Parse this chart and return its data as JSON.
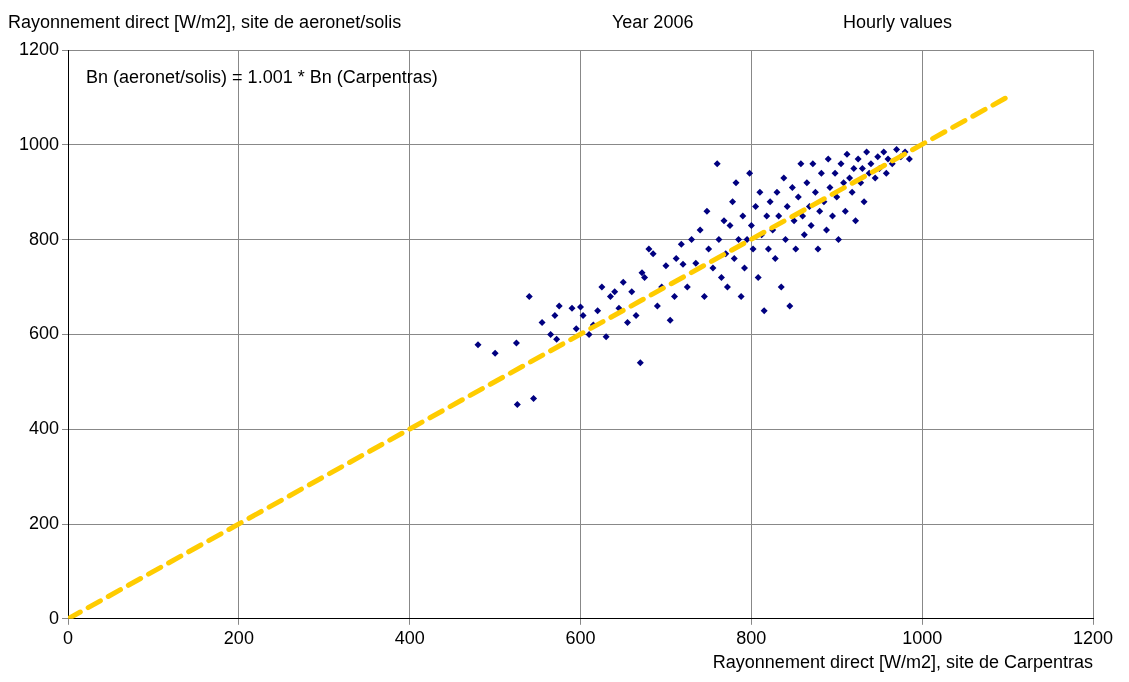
{
  "chart_data": {
    "type": "scatter",
    "title": "Rayonnement direct [W/m2], site de aeronet/solis",
    "subtitle": "Year 2006",
    "xlabel": "Rayonnement direct [W/m2], site de Carpentras",
    "annotations": [
      "Hourly values",
      "Bn (aeronet/solis) = 1.001 * Bn (Carpentras)"
    ],
    "xlim": [
      0,
      1200
    ],
    "xticks": [
      0,
      200,
      400,
      600,
      800,
      1000,
      1200
    ],
    "ylim": [
      0,
      1200
    ],
    "yticks": [
      0,
      200,
      400,
      600,
      800,
      1000,
      1200
    ],
    "grid": true,
    "marker": "diamond",
    "series": [
      {
        "type": "scatter",
        "color": "#000080",
        "x": [
          480,
          500,
          525,
          526,
          545,
          540,
          555,
          565,
          570,
          572,
          575,
          590,
          595,
          600,
          603,
          610,
          615,
          620,
          625,
          630,
          635,
          640,
          645,
          650,
          655,
          660,
          665,
          670,
          672,
          675,
          680,
          685,
          690,
          695,
          700,
          705,
          710,
          712,
          718,
          720,
          725,
          730,
          735,
          740,
          745,
          748,
          750,
          755,
          760,
          762,
          765,
          768,
          770,
          772,
          775,
          778,
          780,
          782,
          785,
          788,
          790,
          792,
          795,
          798,
          800,
          802,
          805,
          808,
          810,
          812,
          815,
          818,
          820,
          822,
          825,
          828,
          830,
          832,
          835,
          838,
          840,
          842,
          845,
          848,
          850,
          852,
          855,
          858,
          860,
          862,
          865,
          868,
          870,
          872,
          875,
          878,
          880,
          882,
          885,
          888,
          890,
          892,
          895,
          898,
          900,
          902,
          905,
          908,
          910,
          912,
          915,
          918,
          920,
          922,
          925,
          928,
          930,
          932,
          935,
          938,
          940,
          945,
          948,
          950,
          955,
          958,
          960,
          965,
          970,
          975,
          980,
          985
        ],
        "values": [
          578,
          560,
          582,
          452,
          465,
          680,
          625,
          600,
          640,
          590,
          660,
          655,
          612,
          658,
          640,
          600,
          620,
          650,
          700,
          595,
          680,
          690,
          655,
          710,
          625,
          690,
          640,
          540,
          730,
          720,
          780,
          770,
          660,
          700,
          745,
          630,
          680,
          760,
          790,
          748,
          700,
          800,
          750,
          820,
          680,
          860,
          780,
          740,
          960,
          800,
          720,
          840,
          770,
          700,
          830,
          880,
          760,
          920,
          800,
          680,
          850,
          740,
          800,
          940,
          830,
          780,
          870,
          720,
          900,
          810,
          650,
          850,
          780,
          880,
          820,
          760,
          900,
          850,
          700,
          930,
          800,
          870,
          660,
          910,
          840,
          780,
          890,
          960,
          850,
          810,
          920,
          870,
          830,
          960,
          900,
          780,
          860,
          940,
          880,
          820,
          970,
          910,
          850,
          940,
          890,
          800,
          960,
          920,
          860,
          980,
          930,
          900,
          950,
          840,
          970,
          920,
          950,
          880,
          985,
          940,
          960,
          930,
          975,
          950,
          985,
          940,
          970,
          960,
          990,
          975,
          985,
          970
        ]
      },
      {
        "type": "line",
        "color": "#ffcc00",
        "line_style": "dashed",
        "marker": "none",
        "x": [
          0,
          1100
        ],
        "values": [
          0,
          1101
        ]
      }
    ]
  }
}
